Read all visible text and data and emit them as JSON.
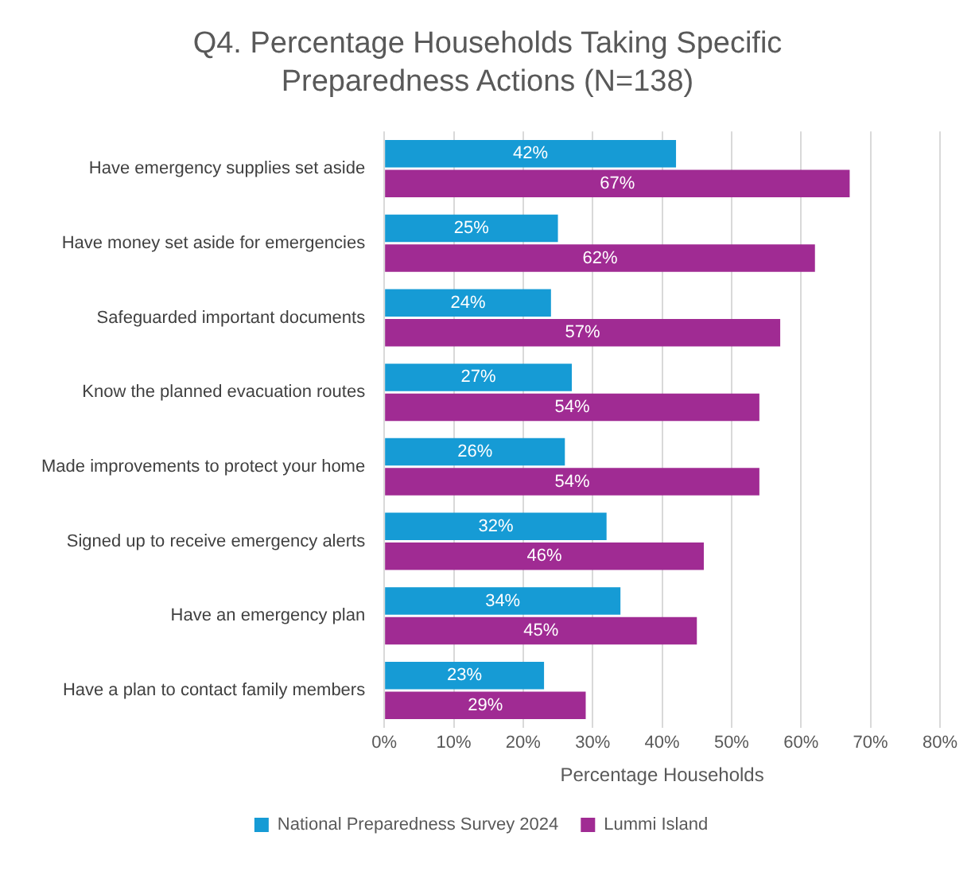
{
  "chart_data": {
    "type": "bar",
    "orientation": "horizontal",
    "title": "Q4. Percentage Households Taking Specific Preparedness Actions (N=138)",
    "categories": [
      "Have emergency supplies set aside",
      "Have money set aside for emergencies",
      "Safeguarded important documents",
      "Know the planned evacuation routes",
      "Made improvements to protect your home",
      "Signed up to receive emergency alerts",
      "Have an emergency plan",
      "Have a plan to contact family members"
    ],
    "series": [
      {
        "name": "National Preparedness Survey 2024",
        "color": "#169bd5",
        "values": [
          42,
          25,
          24,
          27,
          26,
          32,
          34,
          23
        ],
        "value_labels": [
          "42%",
          "25%",
          "24%",
          "27%",
          "26%",
          "32%",
          "34%",
          "23%"
        ]
      },
      {
        "name": "Lummi Island",
        "color": "#a02b93",
        "values": [
          67,
          62,
          57,
          54,
          54,
          46,
          45,
          29
        ],
        "value_labels": [
          "67%",
          "62%",
          "57%",
          "54%",
          "54%",
          "46%",
          "45%",
          "29%"
        ]
      }
    ],
    "xlim": [
      0,
      80
    ],
    "xticks": [
      {
        "value": 0,
        "label": "0%"
      },
      {
        "value": 10,
        "label": "10%"
      },
      {
        "value": 20,
        "label": "20%"
      },
      {
        "value": 30,
        "label": "30%"
      },
      {
        "value": 40,
        "label": "40%"
      },
      {
        "value": 50,
        "label": "50%"
      },
      {
        "value": 60,
        "label": "60%"
      },
      {
        "value": 70,
        "label": "70%"
      },
      {
        "value": 80,
        "label": "80%"
      }
    ],
    "xlabel": "Percentage Households",
    "grid": "x",
    "legend": "bottom"
  }
}
